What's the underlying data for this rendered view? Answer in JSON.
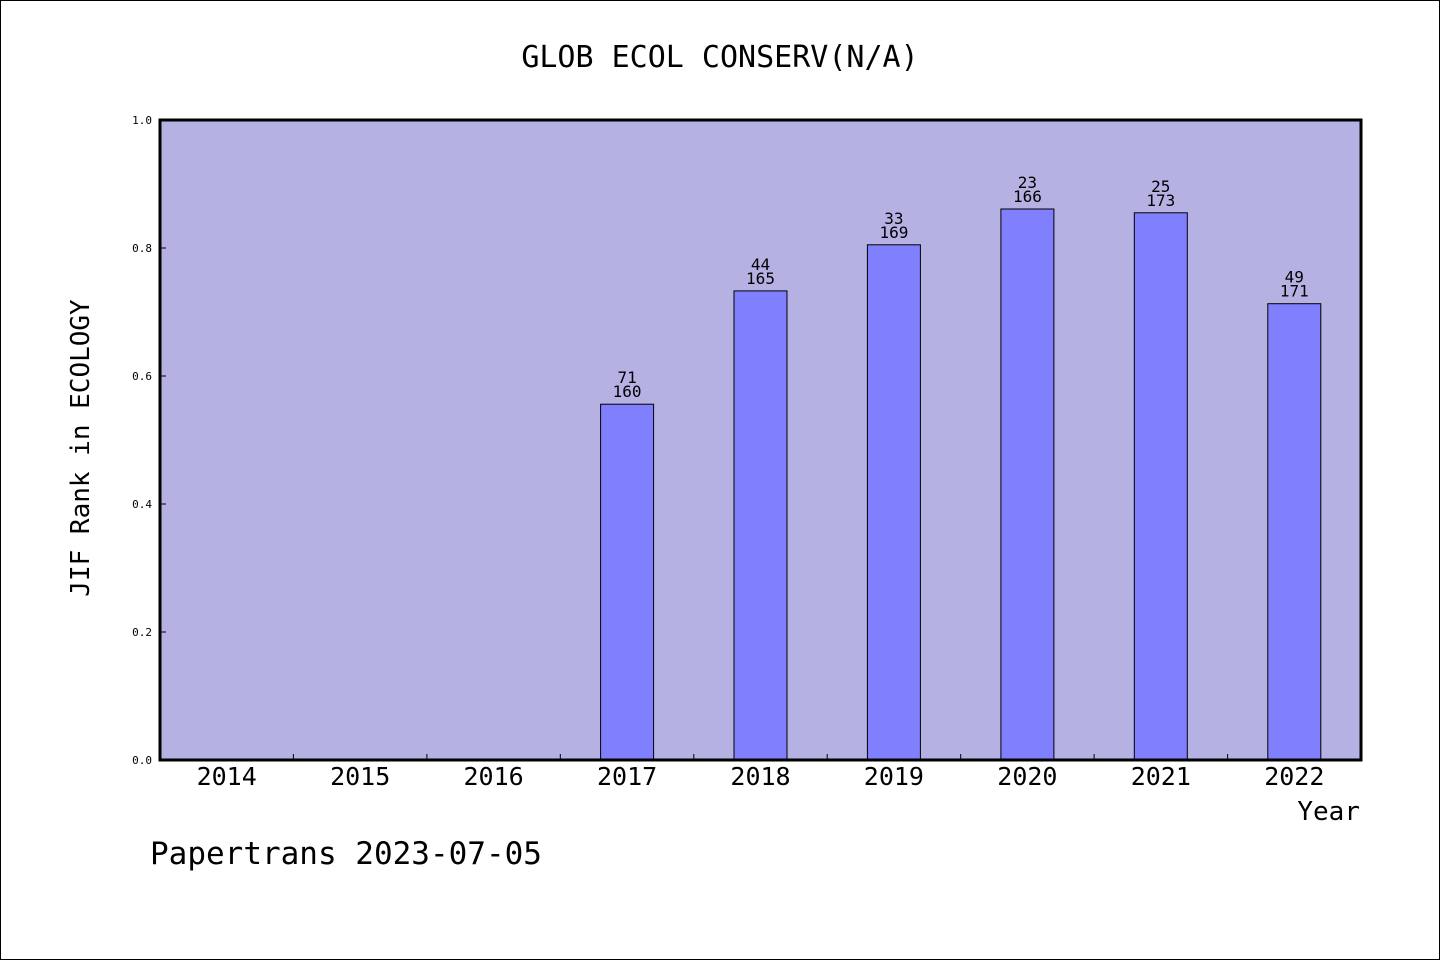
{
  "chart_data": {
    "type": "bar",
    "title": "GLOB ECOL CONSERV(N/A)",
    "xlabel": "Year",
    "ylabel": "JIF Rank in ECOLOGY",
    "categories": [
      "2014",
      "2015",
      "2016",
      "2017",
      "2018",
      "2019",
      "2020",
      "2021",
      "2022"
    ],
    "values": [
      null,
      null,
      null,
      0.556,
      0.733,
      0.805,
      0.861,
      0.855,
      0.713
    ],
    "bar_labels": [
      null,
      null,
      null,
      {
        "rank": "71",
        "total": "160"
      },
      {
        "rank": "44",
        "total": "165"
      },
      {
        "rank": "33",
        "total": "169"
      },
      {
        "rank": "23",
        "total": "166"
      },
      {
        "rank": "25",
        "total": "173"
      },
      {
        "rank": "49",
        "total": "171"
      }
    ],
    "ylim": [
      0,
      1
    ],
    "yticks": [
      "0.0",
      "0.2",
      "0.4",
      "0.6",
      "0.8",
      "1.0"
    ],
    "grid": false,
    "legend": "none",
    "colors": {
      "plot_background": "#b6b1e3",
      "bar_fill": "#8080fe",
      "axis": "#000000"
    }
  },
  "footer": {
    "text": "Papertrans 2023-07-05"
  }
}
